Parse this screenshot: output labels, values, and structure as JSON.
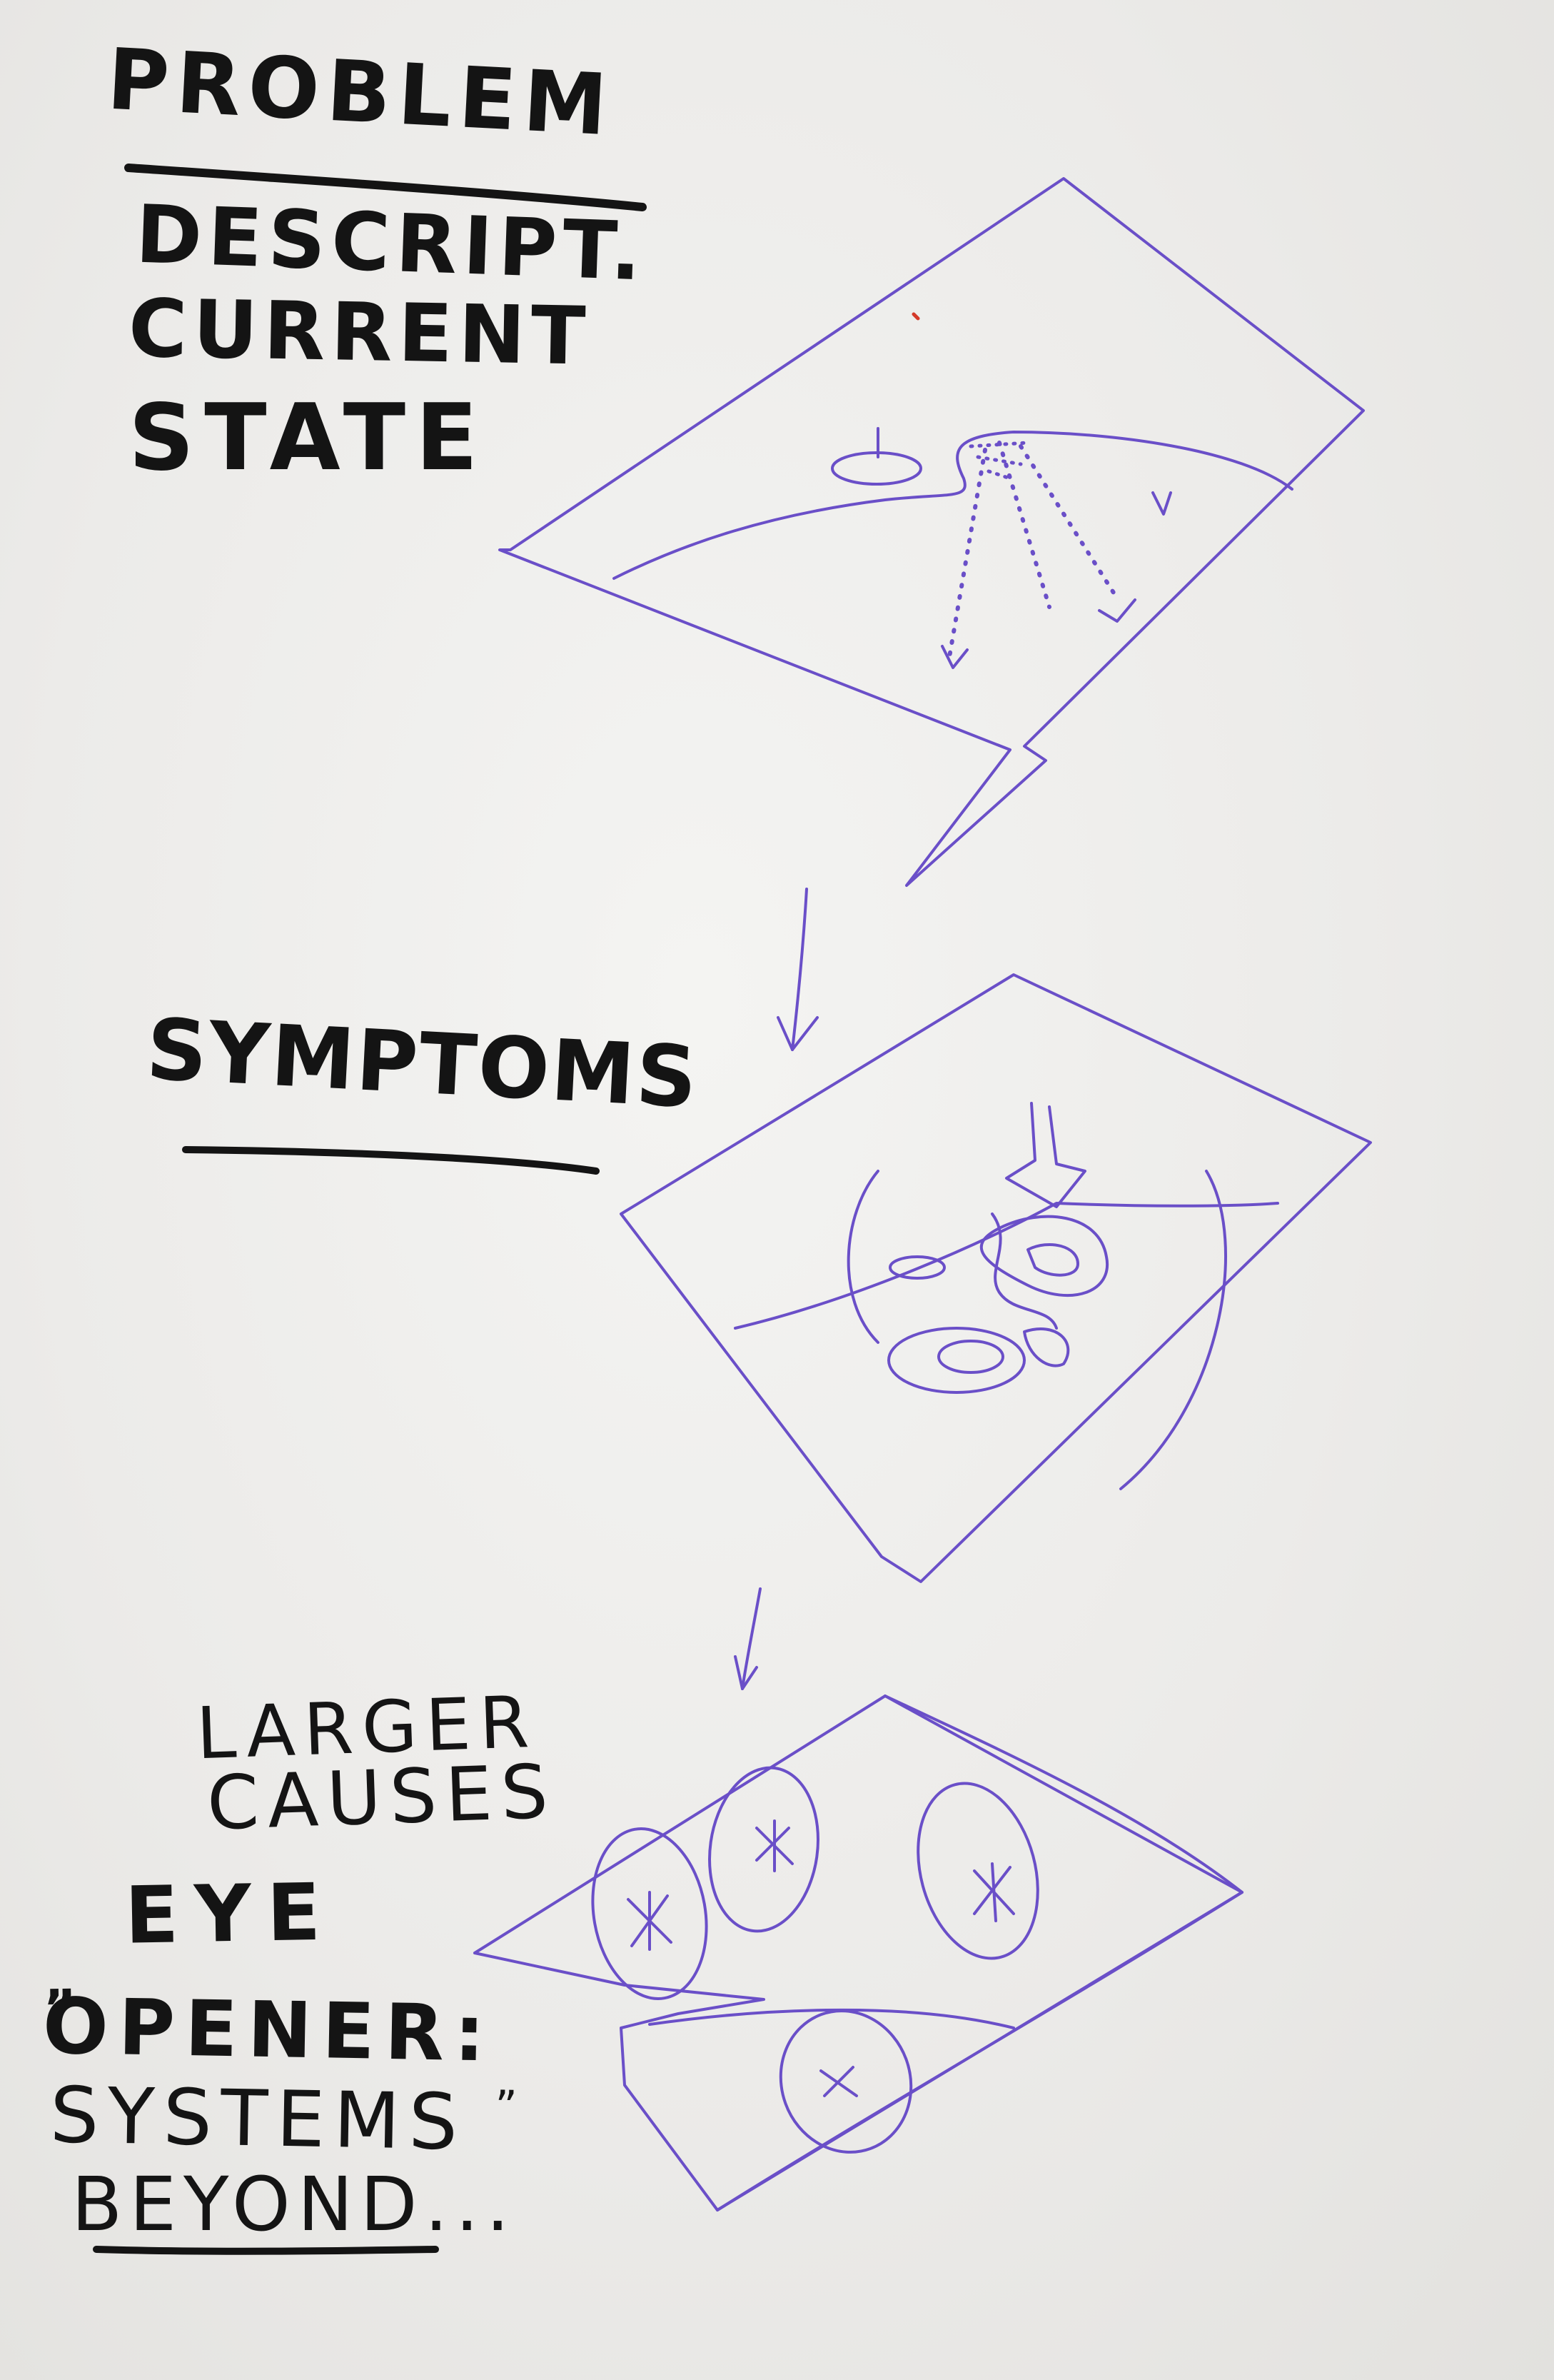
{
  "whiteboard": {
    "marker_colors": {
      "black": "#141414",
      "purple": "#6a4fc8",
      "red": "#d43a2a"
    },
    "labels": {
      "problem": "PROBLEM",
      "descript": "DESCRIPT.",
      "current": "CURRENT",
      "state": "STATE",
      "symptoms": "SYMPTOMS",
      "larger": "LARGER",
      "causes": "CAUSES",
      "eye": "EYE",
      "opener": "OPENER:",
      "systems": "SYSTEMS",
      "beyond": "BEYOND..."
    },
    "quote_marks": {
      "open": "„",
      "close": "”"
    }
  }
}
